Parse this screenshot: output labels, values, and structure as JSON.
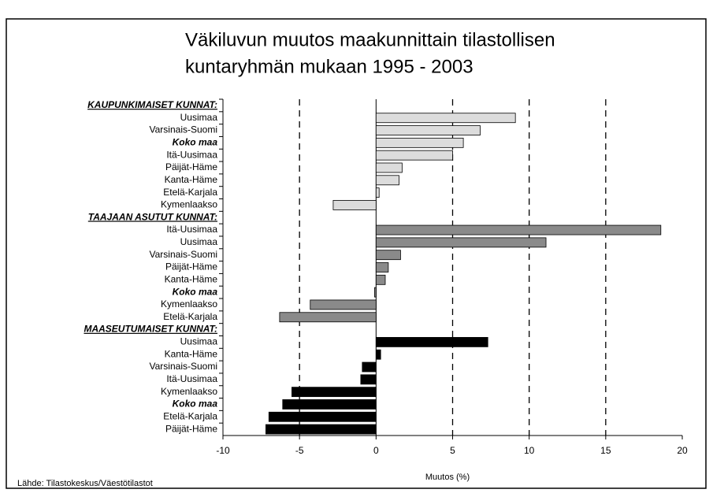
{
  "chart_data": {
    "type": "bar",
    "orientation": "horizontal",
    "title": [
      "Väkiluvun muutos maakunnittain tilastollisen",
      "kuntaryhmän mukaan 1995 - 2003"
    ],
    "x_label": "Muutos (%)",
    "source": "Lähde: Tilastokeskus/Väestötilastot",
    "xlim": [
      -10,
      20
    ],
    "xticks": [
      -10,
      -5,
      0,
      5,
      10,
      15,
      20
    ],
    "grid": "dashed",
    "emphasis": "Koko maa",
    "groups": [
      {
        "name": "KAUPUNKIMAISET KUNNAT:",
        "color": "#dcdcdc",
        "categories": [
          "Uusimaa",
          "Varsinais-Suomi",
          "Koko maa",
          "Itä-Uusimaa",
          "Päijät-Häme",
          "Kanta-Häme",
          "Etelä-Karjala",
          "Kymenlaakso"
        ],
        "values": [
          9.1,
          6.8,
          5.7,
          5.0,
          1.7,
          1.5,
          0.2,
          -2.8
        ]
      },
      {
        "name": "TAAJAAN ASUTUT KUNNAT:",
        "color": "#8a8a8a",
        "categories": [
          "Itä-Uusimaa",
          "Uusimaa",
          "Varsinais-Suomi",
          "Päijät-Häme",
          "Kanta-Häme",
          "Koko maa",
          "Kymenlaakso",
          "Etelä-Karjala"
        ],
        "values": [
          18.6,
          11.1,
          1.6,
          0.8,
          0.6,
          -0.1,
          -4.3,
          -6.3
        ]
      },
      {
        "name": "MAASEUTUMAISET KUNNAT:",
        "color": "#000000",
        "categories": [
          "Uusimaa",
          "Kanta-Häme",
          "Varsinais-Suomi",
          "Itä-Uusimaa",
          "Kymenlaakso",
          "Koko maa",
          "Etelä-Karjala",
          "Päijät-Häme"
        ],
        "values": [
          7.3,
          0.3,
          -0.9,
          -1.0,
          -5.5,
          -6.1,
          -7.0,
          -7.2
        ]
      }
    ]
  }
}
